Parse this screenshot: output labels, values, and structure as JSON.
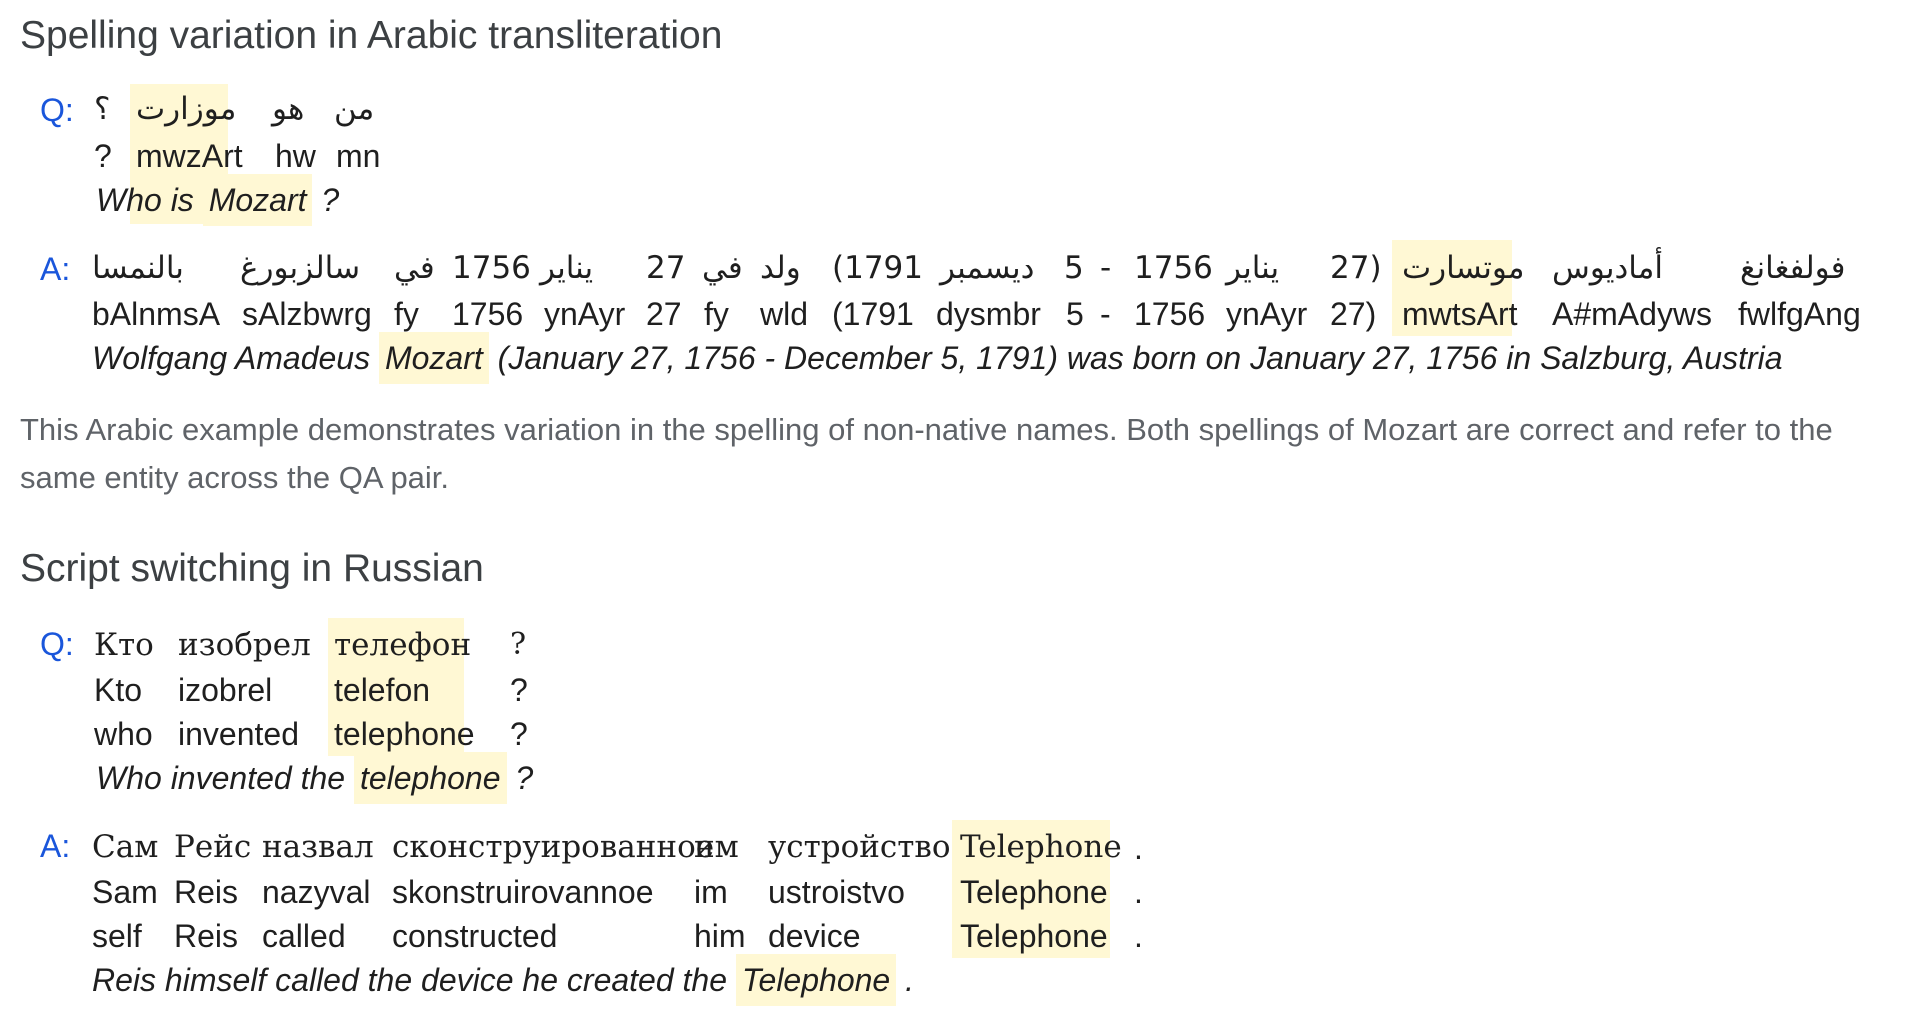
{
  "sections": [
    {
      "title": "Spelling variation in Arabic transliteration",
      "q": {
        "label": "Q:",
        "arabic": {
          "w1": "؟",
          "w2": "موزارت",
          "w3": "هو",
          "w4": "من"
        },
        "translit": {
          "w1": "?",
          "w2": "mwzArt",
          "w3": "hw",
          "w4": "mn"
        },
        "english_parts": {
          "pre": "Who is",
          "hl": "Mozart",
          "post": "?"
        }
      },
      "a": {
        "label": "A:",
        "arabic": [
          "بالنمسا",
          "سالزبورغ",
          "في",
          "1756",
          "يناير",
          "27",
          "في",
          "ولد",
          "(1791",
          "ديسمبر",
          "5",
          "-",
          "1756",
          "يناير",
          "27)",
          "موتسارت",
          "أماديوس",
          "فولفغانغ"
        ],
        "translit": [
          "bAlnmsA",
          "sAlzbwrg",
          "fy",
          "1756",
          "ynAyr",
          "27",
          "fy",
          "wld",
          "(1791",
          "dysmbr",
          "5",
          "-",
          "1756",
          "ynAyr",
          "27)",
          "mwtsArt",
          "A#mAdyws",
          "fwlfgAng"
        ],
        "english_parts": {
          "pre": "Wolfgang Amadeus",
          "hl": "Mozart",
          "post": "(January 27, 1756 - December 5, 1791) was born on January 27, 1756 in Salzburg, Austria"
        }
      },
      "description": "This Arabic example demonstrates variation in the spelling of non-native names. Both spellings of Mozart are correct and refer to the same entity across the QA pair."
    },
    {
      "title": "Script switching in Russian",
      "q": {
        "label": "Q:",
        "cyrillic": [
          "Кто",
          "изобрел",
          "телефон",
          "?"
        ],
        "translit": [
          "Kto",
          "izobrel",
          "telefon",
          "?"
        ],
        "gloss": [
          "who",
          "invented",
          "telephone",
          "?"
        ],
        "english_parts": {
          "pre": "Who invented the",
          "hl": "telephone",
          "post": "?"
        }
      },
      "a": {
        "label": "A:",
        "cyrillic": [
          "Сам",
          "Рейс",
          "назвал",
          "сконструированное",
          "им",
          "устройство",
          "Telephone",
          "."
        ],
        "translit": [
          "Sam",
          "Reis",
          "nazyval",
          "skonstruirovannoe",
          "im",
          "ustroistvo",
          "Telephone",
          "."
        ],
        "gloss": [
          "self",
          "Reis",
          "called",
          "constructed",
          "him",
          "device",
          "Telephone",
          "."
        ],
        "english_parts": {
          "pre": "Reis himself called the device he created the",
          "hl": "Telephone",
          "post": "."
        }
      }
    }
  ]
}
